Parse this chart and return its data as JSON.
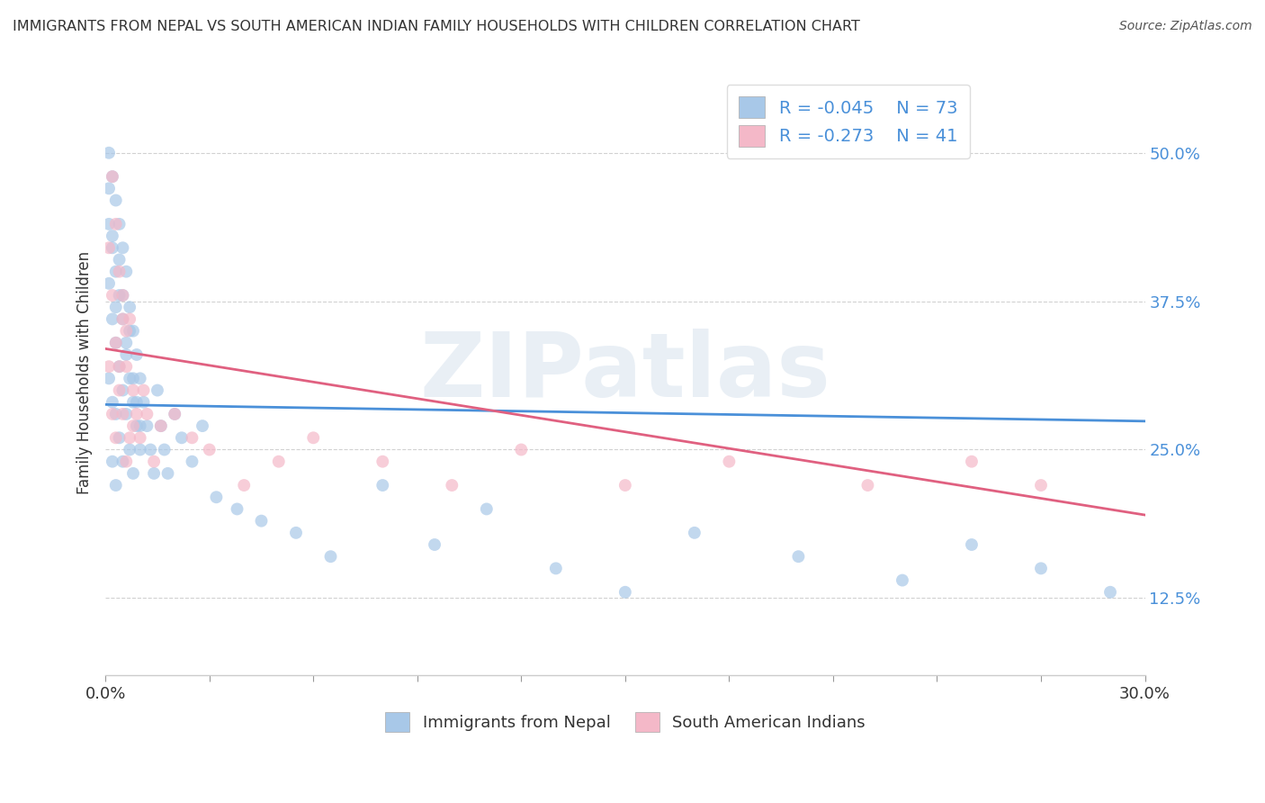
{
  "title": "IMMIGRANTS FROM NEPAL VS SOUTH AMERICAN INDIAN FAMILY HOUSEHOLDS WITH CHILDREN CORRELATION CHART",
  "source": "Source: ZipAtlas.com",
  "ylabel": "Family Households with Children",
  "legend_label1": "Immigrants from Nepal",
  "legend_label2": "South American Indians",
  "legend_R1": "-0.045",
  "legend_N1": "73",
  "legend_R2": "-0.273",
  "legend_N2": "41",
  "color_blue": "#a8c8e8",
  "color_blue_line": "#4a90d9",
  "color_pink": "#f4b8c8",
  "color_pink_line": "#e06080",
  "watermark": "ZIPatlas",
  "xlim": [
    0.0,
    0.3
  ],
  "ylim": [
    0.06,
    0.57
  ],
  "yticks": [
    0.125,
    0.25,
    0.375,
    0.5
  ],
  "ytick_labels": [
    "12.5%",
    "25.0%",
    "37.5%",
    "50.0%"
  ],
  "nepal_trendline_x": [
    0.0,
    0.3
  ],
  "nepal_trendline_y": [
    0.288,
    0.274
  ],
  "sa_trendline_x": [
    0.0,
    0.3
  ],
  "sa_trendline_y": [
    0.335,
    0.195
  ],
  "nepal_x": [
    0.001,
    0.001,
    0.001,
    0.001,
    0.002,
    0.002,
    0.002,
    0.002,
    0.002,
    0.003,
    0.003,
    0.003,
    0.003,
    0.003,
    0.004,
    0.004,
    0.004,
    0.004,
    0.005,
    0.005,
    0.005,
    0.005,
    0.006,
    0.006,
    0.006,
    0.007,
    0.007,
    0.007,
    0.008,
    0.008,
    0.008,
    0.009,
    0.009,
    0.01,
    0.01,
    0.011,
    0.012,
    0.013,
    0.014,
    0.015,
    0.016,
    0.017,
    0.018,
    0.02,
    0.022,
    0.025,
    0.028,
    0.032,
    0.038,
    0.045,
    0.055,
    0.065,
    0.08,
    0.095,
    0.11,
    0.13,
    0.15,
    0.17,
    0.2,
    0.23,
    0.25,
    0.27,
    0.29,
    0.001,
    0.002,
    0.003,
    0.004,
    0.005,
    0.006,
    0.007,
    0.008,
    0.009,
    0.01
  ],
  "nepal_y": [
    0.5,
    0.44,
    0.39,
    0.31,
    0.48,
    0.42,
    0.36,
    0.29,
    0.24,
    0.46,
    0.4,
    0.34,
    0.28,
    0.22,
    0.44,
    0.38,
    0.32,
    0.26,
    0.42,
    0.36,
    0.3,
    0.24,
    0.4,
    0.34,
    0.28,
    0.37,
    0.31,
    0.25,
    0.35,
    0.29,
    0.23,
    0.33,
    0.27,
    0.31,
    0.25,
    0.29,
    0.27,
    0.25,
    0.23,
    0.3,
    0.27,
    0.25,
    0.23,
    0.28,
    0.26,
    0.24,
    0.27,
    0.21,
    0.2,
    0.19,
    0.18,
    0.16,
    0.22,
    0.17,
    0.2,
    0.15,
    0.13,
    0.18,
    0.16,
    0.14,
    0.17,
    0.15,
    0.13,
    0.47,
    0.43,
    0.37,
    0.41,
    0.38,
    0.33,
    0.35,
    0.31,
    0.29,
    0.27
  ],
  "sa_x": [
    0.001,
    0.001,
    0.002,
    0.002,
    0.002,
    0.003,
    0.003,
    0.003,
    0.004,
    0.004,
    0.005,
    0.005,
    0.006,
    0.006,
    0.007,
    0.007,
    0.008,
    0.009,
    0.01,
    0.011,
    0.012,
    0.014,
    0.016,
    0.02,
    0.025,
    0.03,
    0.04,
    0.05,
    0.06,
    0.08,
    0.1,
    0.12,
    0.15,
    0.18,
    0.22,
    0.25,
    0.27,
    0.004,
    0.005,
    0.006,
    0.008
  ],
  "sa_y": [
    0.42,
    0.32,
    0.48,
    0.38,
    0.28,
    0.44,
    0.34,
    0.26,
    0.4,
    0.3,
    0.36,
    0.28,
    0.32,
    0.24,
    0.36,
    0.26,
    0.3,
    0.28,
    0.26,
    0.3,
    0.28,
    0.24,
    0.27,
    0.28,
    0.26,
    0.25,
    0.22,
    0.24,
    0.26,
    0.24,
    0.22,
    0.25,
    0.22,
    0.24,
    0.22,
    0.24,
    0.22,
    0.32,
    0.38,
    0.35,
    0.27
  ],
  "background_color": "#ffffff",
  "grid_color": "#cccccc"
}
